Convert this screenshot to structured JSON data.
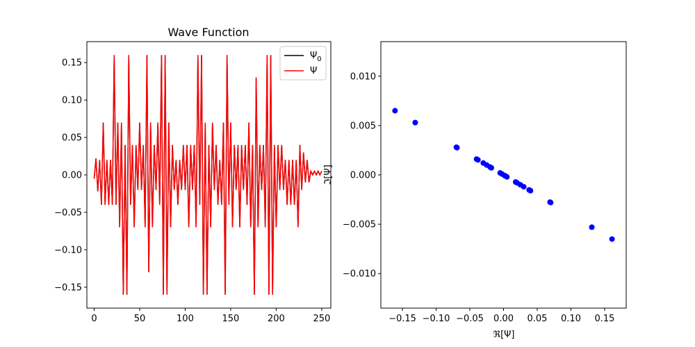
{
  "chart_data": [
    {
      "type": "line",
      "title": "Wave Function",
      "xlabel": "",
      "ylabel": "",
      "xlim": [
        -8,
        260
      ],
      "ylim": [
        -0.178,
        0.178
      ],
      "xticks": [
        0,
        50,
        100,
        150,
        200,
        250
      ],
      "yticks": [
        -0.15,
        -0.1,
        -0.05,
        0.0,
        0.05,
        0.1,
        0.15
      ],
      "ytick_labels": [
        "−0.15",
        "−0.10",
        "−0.05",
        "0.00",
        "0.05",
        "0.10",
        "0.15"
      ],
      "legend": {
        "placement": "top-right",
        "entries": [
          {
            "label": "Ψ",
            "subscript": "0",
            "color": "#000000"
          },
          {
            "label": "Ψ",
            "subscript": "",
            "color": "#ff0000"
          }
        ]
      },
      "grid": false,
      "series": [
        {
          "name": "Ψ₀",
          "color": "#000000",
          "hidden_behind_next": true
        },
        {
          "name": "Ψ",
          "color": "#ff0000"
        }
      ],
      "x": [
        0,
        2,
        4,
        6,
        8,
        10,
        12,
        14,
        16,
        18,
        20,
        22,
        24,
        26,
        28,
        30,
        32,
        34,
        36,
        38,
        40,
        42,
        44,
        46,
        48,
        50,
        52,
        54,
        56,
        58,
        60,
        62,
        64,
        66,
        68,
        70,
        72,
        74,
        76,
        78,
        80,
        82,
        84,
        86,
        88,
        90,
        92,
        94,
        96,
        98,
        100,
        102,
        104,
        106,
        108,
        110,
        112,
        114,
        116,
        118,
        120,
        122,
        124,
        126,
        128,
        130,
        132,
        134,
        136,
        138,
        140,
        142,
        144,
        146,
        148,
        150,
        152,
        154,
        156,
        158,
        160,
        162,
        164,
        166,
        168,
        170,
        172,
        174,
        176,
        178,
        180,
        182,
        184,
        186,
        188,
        190,
        192,
        194,
        196,
        198,
        200,
        202,
        204,
        206,
        208,
        210,
        212,
        214,
        216,
        218,
        220,
        222,
        224,
        226,
        228,
        230,
        232,
        234,
        236,
        238,
        240,
        242,
        244,
        246,
        248,
        250
      ],
      "values": [
        -0.005,
        0.022,
        -0.022,
        0.02,
        -0.04,
        0.07,
        -0.04,
        0.02,
        -0.04,
        0.02,
        -0.04,
        0.16,
        -0.04,
        0.07,
        -0.07,
        0.07,
        -0.16,
        0.04,
        -0.16,
        0.16,
        -0.04,
        0.04,
        -0.07,
        0.04,
        -0.02,
        0.07,
        -0.02,
        0.04,
        -0.07,
        0.16,
        -0.13,
        0.07,
        -0.07,
        0.04,
        -0.02,
        0.07,
        -0.04,
        0.16,
        -0.16,
        0.16,
        -0.16,
        0.07,
        -0.07,
        0.04,
        -0.02,
        0.02,
        -0.04,
        0.02,
        -0.02,
        0.04,
        -0.02,
        0.04,
        -0.07,
        0.04,
        -0.02,
        0.04,
        -0.07,
        0.16,
        -0.04,
        0.16,
        -0.16,
        0.07,
        -0.16,
        0.04,
        -0.07,
        0.07,
        -0.02,
        0.04,
        -0.04,
        0.02,
        -0.04,
        0.07,
        -0.16,
        0.16,
        -0.04,
        0.07,
        -0.07,
        0.04,
        -0.02,
        0.04,
        -0.07,
        0.04,
        -0.02,
        0.04,
        -0.04,
        0.07,
        -0.07,
        0.04,
        -0.16,
        0.13,
        -0.07,
        0.04,
        -0.02,
        0.04,
        -0.07,
        0.16,
        -0.16,
        0.16,
        -0.16,
        0.04,
        -0.07,
        0.04,
        -0.02,
        0.04,
        -0.02,
        0.02,
        -0.04,
        0.02,
        -0.04,
        0.02,
        -0.04,
        0.02,
        -0.07,
        0.04,
        -0.02,
        0.03,
        -0.01,
        0.02,
        -0.01,
        0.005,
        0.0,
        0.005,
        0.0,
        0.005,
        0.0,
        0.005
      ]
    },
    {
      "type": "scatter",
      "title": "",
      "xlabel": "ℜ[Ψ]",
      "ylabel": "ℑ[Ψ]",
      "xlim": [
        -0.182,
        0.182
      ],
      "ylim": [
        -0.0135,
        0.0135
      ],
      "xticks": [
        -0.15,
        -0.1,
        -0.05,
        0.0,
        0.05,
        0.1,
        0.15
      ],
      "xtick_labels": [
        "−0.15",
        "−0.10",
        "−0.05",
        "0.00",
        "0.05",
        "0.10",
        "0.15"
      ],
      "yticks": [
        -0.01,
        -0.005,
        0.0,
        0.005,
        0.01
      ],
      "ytick_labels": [
        "−0.010",
        "−0.005",
        "0.000",
        "0.005",
        "0.010"
      ],
      "grid": false,
      "color": "#0000ff",
      "points": [
        [
          -0.161,
          0.0065
        ],
        [
          -0.131,
          0.0053
        ],
        [
          -0.07,
          0.0028
        ],
        [
          -0.069,
          0.00276
        ],
        [
          -0.04,
          0.0016
        ],
        [
          -0.038,
          0.00152
        ],
        [
          -0.03,
          0.0012
        ],
        [
          -0.025,
          0.001
        ],
        [
          -0.02,
          0.0008
        ],
        [
          -0.018,
          0.00072
        ],
        [
          -0.005,
          0.0002
        ],
        [
          -0.002,
          8e-05
        ],
        [
          0.002,
          -8e-05
        ],
        [
          0.005,
          -0.0002
        ],
        [
          0.018,
          -0.00072
        ],
        [
          0.02,
          -0.0008
        ],
        [
          0.025,
          -0.001
        ],
        [
          0.03,
          -0.0012
        ],
        [
          0.038,
          -0.00152
        ],
        [
          0.04,
          -0.0016
        ],
        [
          0.069,
          -0.00276
        ],
        [
          0.07,
          -0.0028
        ],
        [
          0.131,
          -0.0053
        ],
        [
          0.161,
          -0.0065
        ]
      ]
    }
  ]
}
